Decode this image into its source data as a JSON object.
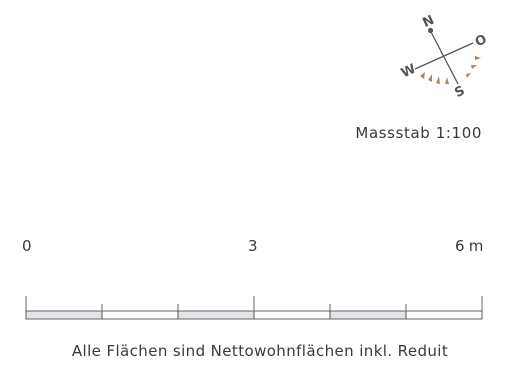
{
  "compass": {
    "north": "N",
    "east": "O",
    "south": "S",
    "west": "W",
    "needle_color": "#555555",
    "sun_marker_color": "#b5835a"
  },
  "scale": {
    "label": "Massstab 1:100",
    "ticks": [
      {
        "label": "0"
      },
      {
        "label": "3"
      },
      {
        "label": "6"
      }
    ],
    "unit": "m",
    "segments": [
      {
        "filled": true
      },
      {
        "filled": false
      },
      {
        "filled": true
      },
      {
        "filled": false
      },
      {
        "filled": true
      },
      {
        "filled": false
      }
    ],
    "fill_color": "#e2e4e7"
  },
  "footnote": "Alle Flächen sind Nettowohnflächen inkl. Reduit"
}
